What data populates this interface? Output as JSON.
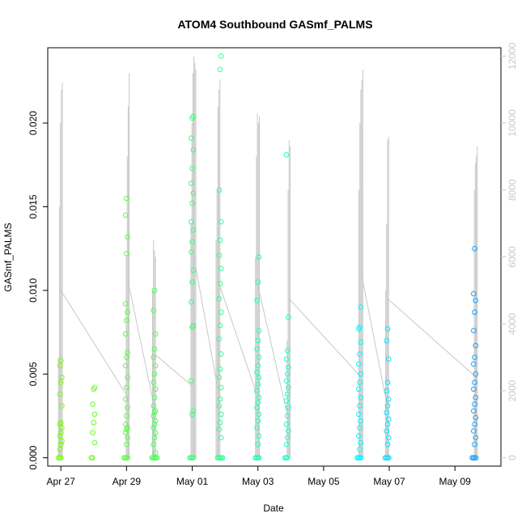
{
  "chart_data": {
    "type": "scatter",
    "title": "ATOM4 Southbound GASmf_PALMS",
    "xlabel": "Date",
    "ylabel": "GASmf_PALMS",
    "x_ticks": [
      "Apr 27",
      "Apr 29",
      "May 01",
      "May 03",
      "May 05",
      "May 07",
      "May 09"
    ],
    "x_tick_values": [
      27,
      29,
      31,
      33,
      35,
      37,
      39
    ],
    "x_range": [
      26.6,
      40.4
    ],
    "y_ticks": [
      "0.000",
      "0.005",
      "0.010",
      "0.015",
      "0.020"
    ],
    "y_tick_values": [
      0,
      0.005,
      0.01,
      0.015,
      0.02
    ],
    "ylim": [
      -0.0005,
      0.0245
    ],
    "y2_ticks": [
      "0",
      "2000",
      "4000",
      "6000",
      "8000",
      "10000",
      "12000"
    ],
    "y2_tick_values": [
      0,
      2000,
      4000,
      6000,
      8000,
      10000,
      12000
    ],
    "y2lim": [
      -250,
      12250
    ],
    "y2_color": "#c8c8c8",
    "color_scale": {
      "start": "#7cfc00",
      "middle": "#00ffff",
      "end": "#1e90ff"
    },
    "points": [
      {
        "x": 27.0,
        "y": [
          0,
          0,
          0,
          0.0005,
          0.0008,
          0.001,
          0.0013,
          0.0015,
          0.0018,
          0.002,
          0.0021,
          0.0031,
          0.0038,
          0.0045,
          0.0048,
          0.0055,
          0.0058
        ]
      },
      {
        "x": 28.0,
        "y": [
          0,
          0,
          0.0009,
          0.0015,
          0.0021,
          0.0026,
          0.0032,
          0.0041,
          0.0042
        ]
      },
      {
        "x": 29.0,
        "y": [
          0,
          0,
          0,
          0,
          0.0008,
          0.0012,
          0.0015,
          0.0017,
          0.0018,
          0.002,
          0.0025,
          0.003,
          0.0035,
          0.0042,
          0.0048,
          0.0055,
          0.006,
          0.0063,
          0.0074,
          0.0082,
          0.0087,
          0.0092,
          0.0122,
          0.0132,
          0.0145,
          0.0155
        ]
      },
      {
        "x": 29.85,
        "y": [
          0,
          0,
          0,
          0,
          0,
          0.0003,
          0.0008,
          0.0012,
          0.0015,
          0.0018,
          0.002,
          0.0022,
          0.0025,
          0.0027,
          0.0028,
          0.0031,
          0.0036,
          0.0041,
          0.0045,
          0.005,
          0.0055,
          0.006,
          0.0065,
          0.0074,
          0.0088,
          0.01
        ]
      },
      {
        "x": 31.0,
        "y": [
          0,
          0,
          0,
          0,
          0.0026,
          0.0028,
          0.0046,
          0.0078,
          0.0079,
          0.0093,
          0.0105,
          0.0112,
          0.0123,
          0.0129,
          0.0136,
          0.0141,
          0.0152,
          0.0158,
          0.0164,
          0.0173,
          0.0184,
          0.0191,
          0.0203,
          0.0204
        ]
      },
      {
        "x": 31.85,
        "y": [
          0,
          0,
          0,
          0,
          0,
          0.0012,
          0.0017,
          0.0021,
          0.0026,
          0.0031,
          0.0035,
          0.0042,
          0.0048,
          0.0053,
          0.0062,
          0.0071,
          0.0079,
          0.0087,
          0.0095,
          0.0104,
          0.0113,
          0.0121,
          0.013,
          0.0141,
          0.016,
          0.0232,
          0.024
        ]
      },
      {
        "x": 33.0,
        "y": [
          0,
          0,
          0,
          0,
          0.0008,
          0.0013,
          0.0018,
          0.0022,
          0.0026,
          0.003,
          0.0033,
          0.0036,
          0.004,
          0.0044,
          0.0048,
          0.0051,
          0.0055,
          0.006,
          0.0065,
          0.007,
          0.0076,
          0.0094,
          0.0105,
          0.012
        ]
      },
      {
        "x": 33.9,
        "y": [
          0,
          0,
          0,
          0.0008,
          0.0012,
          0.0016,
          0.002,
          0.0025,
          0.003,
          0.0034,
          0.0038,
          0.0042,
          0.0046,
          0.005,
          0.0054,
          0.0059,
          0.0064,
          0.0084,
          0.0181
        ]
      },
      {
        "x": 36.1,
        "y": [
          0,
          0,
          0,
          0,
          0.0005,
          0.0009,
          0.0013,
          0.0018,
          0.0022,
          0.0026,
          0.0031,
          0.0036,
          0.0041,
          0.0045,
          0.005,
          0.0056,
          0.0062,
          0.0069,
          0.0077,
          0.0078,
          0.009
        ]
      },
      {
        "x": 36.95,
        "y": [
          0,
          0,
          0,
          0,
          0.0008,
          0.0012,
          0.0016,
          0.002,
          0.0023,
          0.0027,
          0.0031,
          0.0035,
          0.004,
          0.0045,
          0.0059,
          0.007,
          0.0077
        ]
      },
      {
        "x": 39.6,
        "y": [
          0,
          0,
          0,
          0,
          0.0008,
          0.0012,
          0.0016,
          0.002,
          0.0024,
          0.0028,
          0.0032,
          0.0036,
          0.0041,
          0.0045,
          0.005,
          0.0056,
          0.006,
          0.0067,
          0.0076,
          0.0087,
          0.0094,
          0.0098,
          0.0125
        ]
      }
    ],
    "secondary_spikes": [
      {
        "x": 27.0,
        "y": [
          3000,
          7500,
          10000,
          11000,
          11200
        ]
      },
      {
        "x": 29.05,
        "y": [
          6000,
          9000,
          10500,
          11500
        ]
      },
      {
        "x": 29.85,
        "y": [
          5000,
          6500,
          6200,
          6000
        ]
      },
      {
        "x": 31.05,
        "y": [
          7000,
          10000,
          11500,
          12000,
          11800,
          11600
        ]
      },
      {
        "x": 31.8,
        "y": [
          6500,
          8000,
          10500,
          11000,
          11300
        ]
      },
      {
        "x": 33.0,
        "y": [
          6000,
          9000,
          10300,
          10000,
          10200
        ]
      },
      {
        "x": 33.95,
        "y": [
          3500,
          8000,
          9500,
          9300
        ]
      },
      {
        "x": 36.15,
        "y": [
          8000,
          10000,
          11000,
          11300,
          11600
        ]
      },
      {
        "x": 36.95,
        "y": [
          5000,
          7000,
          9500,
          9600
        ]
      },
      {
        "x": 39.65,
        "y": [
          8000,
          8800,
          9000,
          9300
        ]
      }
    ]
  }
}
